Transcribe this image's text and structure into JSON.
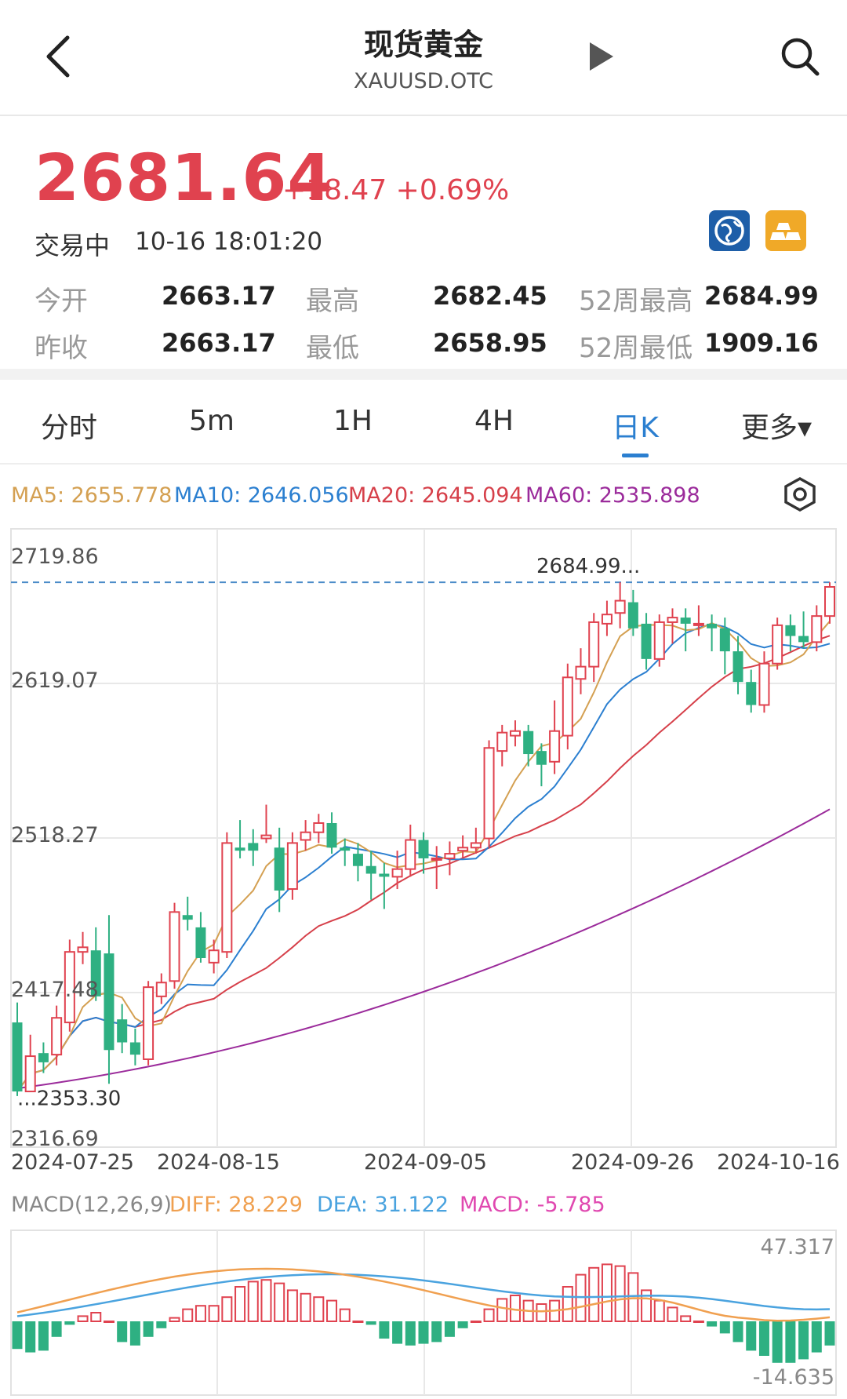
{
  "header": {
    "title": "现货黄金",
    "symbol": "XAUUSD.OTC"
  },
  "quote": {
    "price": "2681.64",
    "change": "+18.47 +0.69%",
    "status": "交易中",
    "time": "10-16 18:01:20",
    "open_label": "今开",
    "open": "2663.17",
    "high_label": "最高",
    "high": "2682.45",
    "w52_high_label": "52周最高",
    "w52_high": "2684.99",
    "prev_label": "昨收",
    "prev": "2663.17",
    "low_label": "最低",
    "low": "2658.95",
    "w52_low_label": "52周最低",
    "w52_low": "1909.16"
  },
  "tabs": [
    {
      "label": "分时"
    },
    {
      "label": "5m"
    },
    {
      "label": "1H"
    },
    {
      "label": "4H"
    },
    {
      "label": "日K"
    },
    {
      "label": "更多▾"
    }
  ],
  "active_tab": "日K",
  "colors": {
    "up": "#e0424f",
    "down": "#2eb082",
    "ma5": "#d4a052",
    "ma10": "#2b7fd0",
    "ma20": "#d6404a",
    "ma60": "#9b2b9b",
    "diff": "#f0a050",
    "dea": "#4aa3df"
  },
  "indicators": {
    "ma5": "MA5: 2655.778",
    "ma10": "MA10: 2646.056",
    "ma20": "MA20: 2645.094",
    "ma60": "MA60: 2535.898"
  },
  "macd": {
    "label": "MACD(12,26,9)",
    "diff": "DIFF: 28.229",
    "dea": "DEA: 31.122",
    "macd": "MACD: -5.785",
    "top_label": "47.317",
    "bottom_label": "-14.635"
  },
  "chart_data": {
    "type": "candlestick",
    "y_ticks": [
      "2719.86",
      "2619.07",
      "2518.27",
      "2417.48",
      "2316.69"
    ],
    "ylim": [
      2316.69,
      2719.86
    ],
    "x_ticks": [
      "2024-07-25",
      "2024-08-15",
      "2024-09-05",
      "2024-09-26",
      "2024-10-16"
    ],
    "max_label": "2684.99...",
    "min_label": "...2353.30",
    "reference_line": 2684.99
  }
}
